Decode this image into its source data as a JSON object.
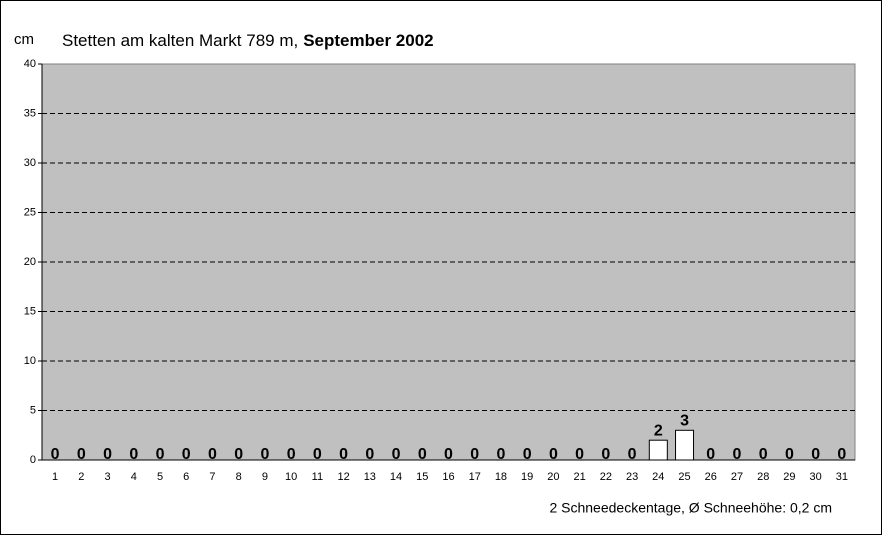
{
  "chart_data": {
    "type": "bar",
    "title": "Stetten am kalten Markt 789 m,",
    "subtitle": "September 2002",
    "y_label": "cm",
    "note": "2 Schneedeckentage, Ø Schneehöhe:  0,2 cm",
    "categories": [
      "1",
      "2",
      "3",
      "4",
      "5",
      "6",
      "7",
      "8",
      "9",
      "10",
      "11",
      "12",
      "13",
      "14",
      "15",
      "16",
      "17",
      "18",
      "19",
      "20",
      "21",
      "22",
      "23",
      "24",
      "25",
      "26",
      "27",
      "28",
      "29",
      "30",
      "31"
    ],
    "values": [
      0,
      0,
      0,
      0,
      0,
      0,
      0,
      0,
      0,
      0,
      0,
      0,
      0,
      0,
      0,
      0,
      0,
      0,
      0,
      0,
      0,
      0,
      0,
      2,
      3,
      0,
      0,
      0,
      0,
      0,
      0
    ],
    "color": "#ffffff",
    "background": "#c0c0c0",
    "ylim": [
      0,
      40
    ],
    "yticks": [
      0,
      5,
      10,
      15,
      20,
      25,
      30,
      35,
      40
    ],
    "grid": true
  }
}
